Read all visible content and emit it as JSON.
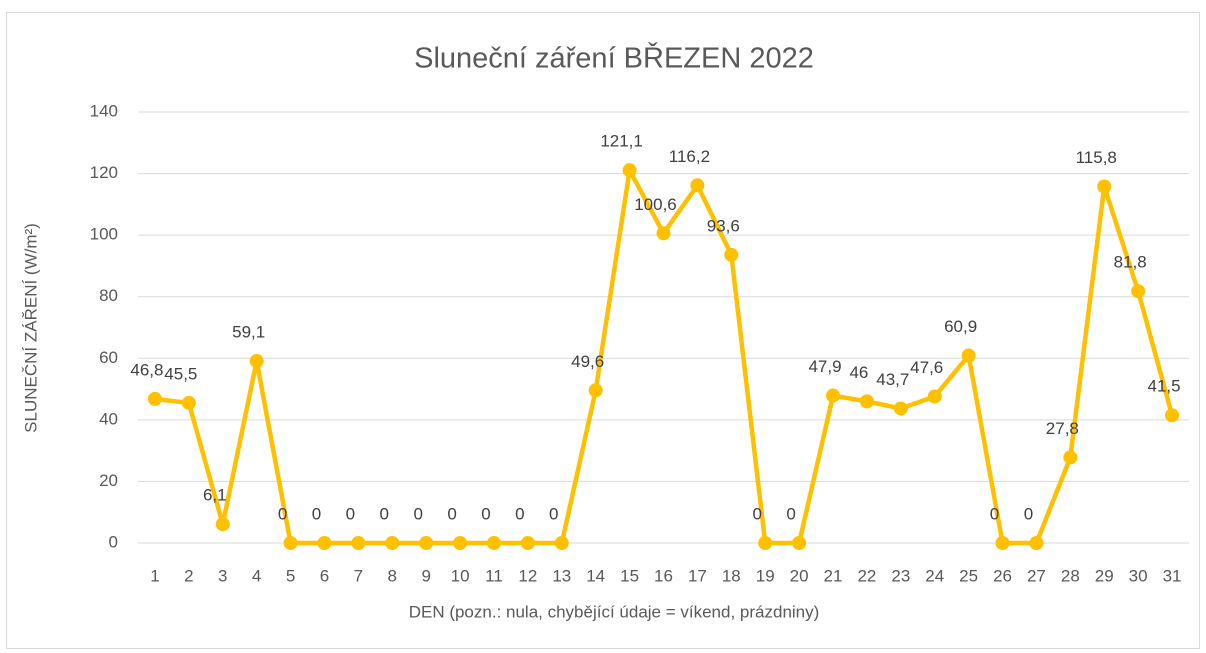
{
  "chart_data": {
    "type": "line",
    "title": "Sluneční záření BŘEZEN 2022",
    "x_label": "DEN (pozn.: nula, chybějící údaje = víkend, prázdniny)",
    "y_label": "SLUNEČNÍ ZÁŘENÍ (W/m²)",
    "categories": [
      "1",
      "2",
      "3",
      "4",
      "5",
      "6",
      "7",
      "8",
      "9",
      "10",
      "11",
      "12",
      "13",
      "14",
      "15",
      "16",
      "17",
      "18",
      "19",
      "20",
      "21",
      "22",
      "23",
      "24",
      "25",
      "26",
      "27",
      "28",
      "29",
      "30",
      "31"
    ],
    "series": [
      {
        "name": "Sluneční záření",
        "color": "#ffc000",
        "values": [
          46.8,
          45.5,
          6.1,
          59.1,
          0,
          0,
          0,
          0,
          0,
          0,
          0,
          0,
          0,
          49.6,
          121.1,
          100.6,
          116.2,
          93.6,
          0,
          0,
          47.9,
          46,
          43.7,
          47.6,
          60.9,
          0,
          0,
          27.8,
          115.8,
          81.8,
          41.5
        ],
        "value_labels": [
          "46,8",
          "45,5",
          "6,1",
          "59,1",
          "0",
          "0",
          "0",
          "0",
          "0",
          "0",
          "0",
          "0",
          "0",
          "49,6",
          "121,1",
          "100,6",
          "116,2",
          "93,6",
          "0",
          "0",
          "47,9",
          "46",
          "43,7",
          "47,6",
          "60,9",
          "0",
          "0",
          "27,8",
          "115,8",
          "81,8",
          "41,5"
        ]
      }
    ],
    "ylim": [
      0,
      140
    ],
    "yticks": [
      0,
      20,
      40,
      60,
      80,
      100,
      120,
      140
    ],
    "grid": true
  }
}
